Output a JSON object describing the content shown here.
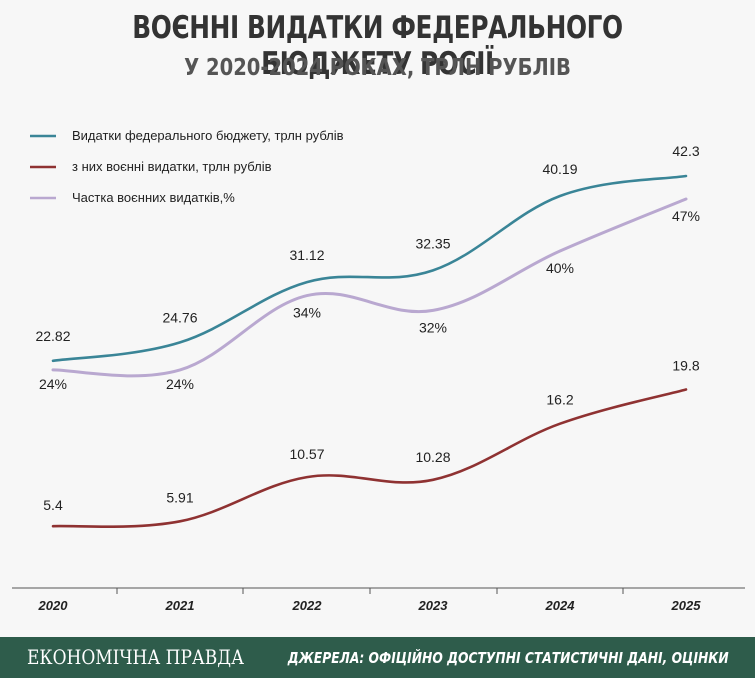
{
  "title": "ВОЄННІ ВИДАТКИ ФЕДЕРАЛЬНОГО БЮДЖЕТУ РОСІЇ",
  "subtitle": "У 2020-2024 РОКАХ, ТРЛН РУБЛІВ",
  "footer": {
    "brand": "ЕКОНОМІЧНА ПРАВДА",
    "source": "ДЖЕРЕЛА: ОФІЦІЙНО ДОСТУПНІ СТАТИСТИЧНІ ДАНІ, ОЦІНКИ"
  },
  "colors": {
    "budget": "#3a8597",
    "military": "#8f3232",
    "share": "#b9a8d0"
  },
  "chart_data": {
    "type": "line",
    "categories": [
      "2020",
      "2021",
      "2022",
      "2023",
      "2024",
      "2025"
    ],
    "series": [
      {
        "name": "Видатки федерального бюджету, трлн рублів",
        "values": [
          22.82,
          24.76,
          31.12,
          32.35,
          40.19,
          42.3
        ],
        "labels": [
          "22.82",
          "24.76",
          "31.12",
          "32.35",
          "40.19",
          "42.3"
        ]
      },
      {
        "name": "з них воєнні видатки, трлн рублів",
        "values": [
          5.4,
          5.91,
          10.57,
          10.28,
          16.2,
          19.8
        ],
        "labels": [
          "5.4",
          "5.91",
          "10.57",
          "10.28",
          "16.2",
          "19.8"
        ]
      },
      {
        "name": "Частка воєнних видатків,%",
        "values": [
          24,
          24,
          34,
          32,
          40,
          47
        ],
        "labels": [
          "24%",
          "24%",
          "34%",
          "32%",
          "40%",
          "47%"
        ]
      }
    ],
    "legend_position": "top-left",
    "grid": false
  }
}
